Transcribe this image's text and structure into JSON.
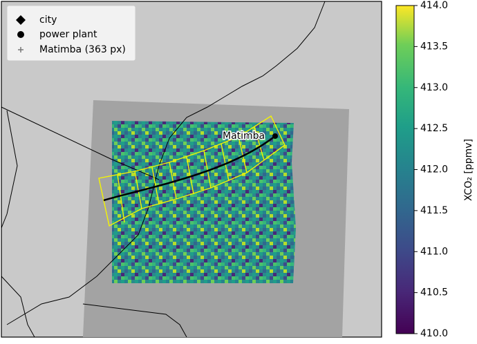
{
  "chart_data": {
    "type": "map",
    "legend": {
      "position": "upper left",
      "entries": [
        "city",
        "power plant",
        "Matimba (363 px)"
      ]
    },
    "annotation": "Matimba",
    "colorbar": {
      "label": "XCO₂ [ppmv]",
      "colormap": "viridis",
      "lim": [
        410,
        414
      ],
      "ticks": [
        {
          "value": 410,
          "label": "410.0"
        },
        {
          "value": 410.5,
          "label": "410.5"
        },
        {
          "value": 411,
          "label": "411.0"
        },
        {
          "value": 411.5,
          "label": "411.5"
        },
        {
          "value": 412,
          "label": "412.0"
        },
        {
          "value": 412.5,
          "label": "412.5"
        },
        {
          "value": 413,
          "label": "413.0"
        },
        {
          "value": 413.5,
          "label": "413.5"
        },
        {
          "value": 414,
          "label": "414.0"
        }
      ]
    }
  }
}
